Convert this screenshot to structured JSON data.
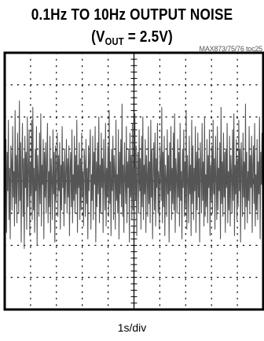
{
  "title": {
    "line1": "0.1Hz TO 10Hz OUTPUT NOISE",
    "line2_open": "(V",
    "line2_sub": "OUT",
    "line2_close": " = 2.5V)"
  },
  "figure_ref": "MAX873/75/76 toc25",
  "chart_data": {
    "type": "line",
    "xlabel": "1s/div",
    "ylabel": "",
    "x_divisions": 10,
    "y_divisions": 8,
    "xlim": [
      0,
      10
    ],
    "ylim": [
      -4,
      4
    ],
    "grid": true,
    "trace_color": "#555555",
    "series": [
      {
        "values": [
          0.2,
          -0.8,
          1.3,
          -1.6,
          0.9,
          -0.3,
          1.9,
          -1.2,
          0.4,
          -1.8,
          1.1,
          0.6,
          -0.9,
          1.7,
          -0.5,
          0.3,
          -1.4,
          2.2,
          -0.7,
          0.8,
          -1.3,
          1.5,
          0.1,
          -1.0,
          2.5,
          -0.6,
          1.2,
          -1.9,
          0.5,
          1.8,
          -1.1,
          0.7,
          -2.1,
          1.4,
          -0.2,
          0.9,
          -1.5,
          2.0,
          -0.8,
          0.3,
          1.6,
          -1.7,
          0.6,
          -0.4,
          1.9,
          -1.2,
          2.3,
          -0.9,
          0.4,
          -1.6,
          1.0,
          -0.3,
          1.7,
          -2.0,
          0.8,
          0.2,
          -1.1,
          1.5,
          -0.7,
          2.1,
          -1.4,
          0.5,
          -0.1,
          1.3,
          -1.8,
          0.9,
          -0.5,
          1.2,
          -1.0,
          0.6,
          1.8,
          -1.3,
          0.3,
          -0.8,
          1.4,
          -1.6,
          0.7,
          0.1,
          -1.2,
          1.6,
          -0.4,
          0.9,
          -1.9,
          1.1,
          -0.6,
          0.4,
          1.5,
          -1.1,
          0.8,
          -0.3,
          1.2,
          -1.5,
          0.5,
          -0.9,
          1.7,
          -0.2,
          0.6,
          -1.4,
          1.0,
          -0.7,
          0.3,
          1.3,
          -1.0,
          0.7,
          -0.5,
          1.1,
          -1.7,
          0.4,
          0.9,
          -0.8,
          1.6,
          -1.3,
          0.2,
          -0.6,
          1.4,
          -1.0,
          0.8,
          -0.4,
          1.9,
          -1.6,
          0.5,
          -0.2,
          1.2,
          -1.2,
          0.7,
          -0.9,
          1.5,
          -0.5,
          0.3,
          -1.4,
          1.0,
          0.6,
          -1.1,
          1.3,
          -0.7,
          0.4,
          -1.8,
          1.1,
          -0.3,
          0.8,
          1.6,
          -1.5,
          0.2,
          -0.6,
          1.4,
          -1.2,
          0.9,
          -0.1,
          1.7,
          -1.9,
          0.6,
          -0.8,
          1.2,
          -0.4,
          2.0,
          -1.3,
          0.5,
          -1.0,
          1.5,
          -0.2,
          0.7,
          -1.6,
          1.3,
          0.1,
          -0.9,
          1.8,
          -1.4,
          0.4,
          -0.5,
          1.1,
          -1.1,
          2.2,
          -0.7,
          0.6,
          -1.7,
          1.0,
          -0.3,
          1.4,
          -1.2,
          0.8,
          0.3,
          -1.5,
          1.9,
          -0.6,
          0.2,
          -1.0,
          1.6,
          -1.8,
          0.9,
          -0.4,
          1.3,
          -0.8,
          2.4,
          -1.1,
          0.5,
          -1.6,
          1.2,
          0.1,
          -0.7,
          1.7,
          -1.3,
          0.6,
          -0.2,
          1.0,
          -1.9,
          1.5,
          -0.5,
          0.8,
          -1.2,
          1.8,
          -0.9,
          0.4,
          -1.4,
          2.1,
          -0.6,
          1.1,
          -1.7,
          0.3,
          0.9,
          -1.0,
          1.6,
          -0.3,
          0.7,
          -1.5,
          1.4,
          -0.8,
          2.0,
          -1.2,
          0.5,
          -0.4,
          1.3,
          -1.6,
          0.8,
          0.2,
          -1.1,
          1.7,
          -0.7,
          0.6,
          -1.3,
          1.9,
          -0.5,
          1.0,
          -1.8,
          0.4,
          1.2,
          -0.9,
          1.5,
          -1.4,
          0.7,
          -0.2,
          1.8,
          -1.0,
          0.3,
          -1.5,
          1.1,
          0.6,
          -0.6,
          2.3,
          -1.3,
          0.9,
          -0.8,
          1.4,
          -1.7,
          0.5,
          0.1,
          -1.1,
          1.6,
          -0.4,
          0.8,
          -1.9,
          1.2,
          -0.3,
          1.7,
          -1.2,
          0.4,
          -0.7,
          1.5,
          -0.9,
          2.1,
          -1.6,
          0.7,
          0.2,
          -1.0,
          1.3,
          -0.5,
          0.9,
          -1.4,
          1.8,
          -0.6,
          0.3,
          -1.8,
          1.0,
          -0.2,
          1.6,
          -1.1,
          0.6,
          -0.8,
          2.2,
          -1.5,
          0.8,
          0.1,
          -1.3,
          1.4,
          -0.4,
          0.5,
          -1.7,
          1.9,
          -0.7,
          1.1,
          -1.2,
          0.4,
          -0.3,
          1.7,
          -1.6,
          0.9,
          -0.9,
          1.5,
          -0.5,
          0.7,
          -1.9,
          1.2,
          0.3,
          -1.0,
          1.8,
          -0.6,
          0.6,
          -1.4,
          2.0,
          -1.1,
          0.2,
          -0.8,
          1.3,
          -1.3,
          0.8,
          -0.2,
          1.6,
          -1.7,
          0.5,
          -0.6,
          1.1,
          -1.0,
          1.9,
          -0.4,
          0.7,
          -1.5,
          1.4,
          0.1,
          -1.2,
          1.7,
          -0.9,
          0.4,
          -0.3,
          1.2,
          -1.8,
          2.3,
          -0.7,
          0.6,
          -1.1,
          1.5,
          -0.5,
          0.9,
          -1.6,
          1.0,
          -0.2,
          1.8,
          -1.3,
          0.3,
          -0.9,
          1.4,
          -1.4,
          0.8,
          0.2,
          -1.0,
          1.6,
          -0.6,
          2.1,
          -1.7,
          0.5,
          -0.4,
          1.3,
          -1.2,
          0.7,
          -0.8,
          1.9,
          -0.3,
          1.0,
          -1.9,
          1.2,
          0.4,
          -1.1,
          1.5,
          -0.5,
          0.6,
          -1.5,
          2.4,
          -0.8,
          0.9,
          -1.3,
          0.3,
          -0.6,
          1.7,
          -1.0,
          0.8,
          -0.2,
          1.4,
          -1.6,
          0.5,
          1.1,
          -0.7,
          1.8,
          -1.4,
          0.2,
          -0.9,
          1.3,
          -1.2,
          0.6,
          -0.4,
          2.0,
          -1.8,
          0.9,
          -0.1,
          1.5,
          -1.0,
          0.7
        ]
      }
    ]
  }
}
